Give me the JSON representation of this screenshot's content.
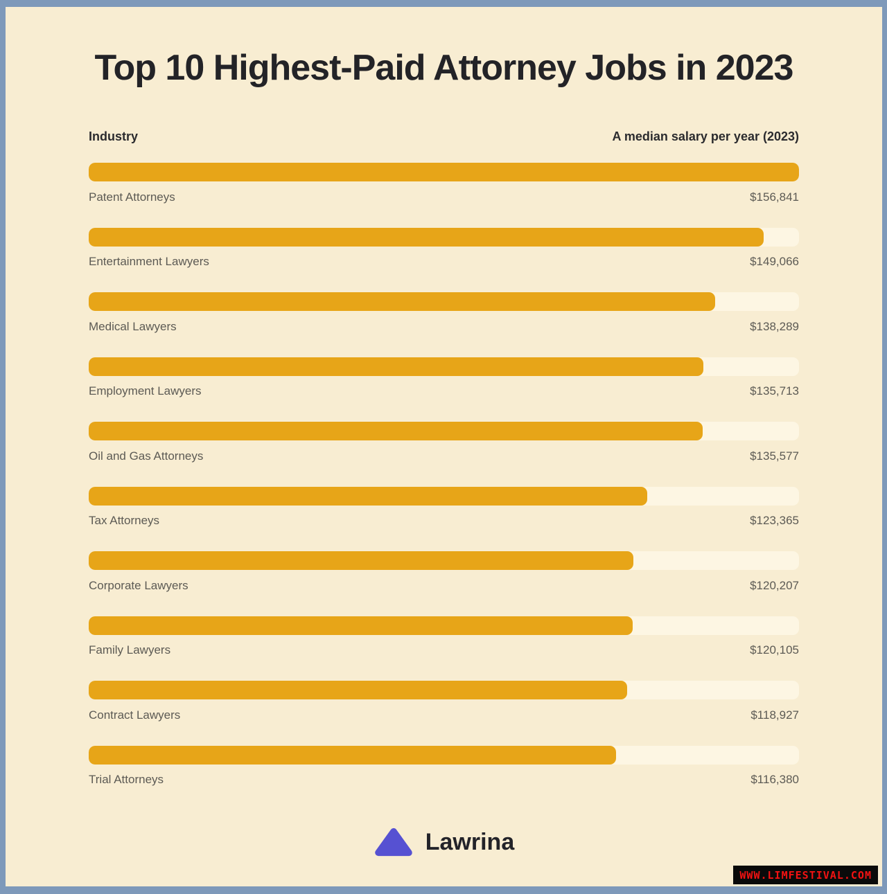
{
  "page": {
    "frame_color": "#7e99ba",
    "background_color": "#f8edd2"
  },
  "title": "Top 10 Highest-Paid Attorney Jobs in 2023",
  "table_headers": {
    "industry": "Industry",
    "salary": "A median salary per year (2023)"
  },
  "chart_data": {
    "type": "bar",
    "orientation": "horizontal",
    "title": "Top 10 Highest-Paid Attorney Jobs in 2023",
    "xlabel": "A median salary per year (2023)",
    "ylabel": "Industry",
    "max_value": 156841,
    "bar_color": "#e7a518",
    "track_color": "#fdf6e3",
    "grid": false,
    "legend": false,
    "categories": [
      "Patent Attorneys",
      "Entertainment Lawyers",
      "Medical Lawyers",
      "Employment Lawyers",
      "Oil and Gas Attorneys",
      "Tax Attorneys",
      "Corporate Lawyers",
      "Family Lawyers",
      "Contract Lawyers",
      "Trial Attorneys"
    ],
    "values": [
      156841,
      149066,
      138289,
      135713,
      135577,
      123365,
      120207,
      120105,
      118927,
      116380
    ],
    "value_labels": [
      "$156,841",
      "$149,066",
      "$138,289",
      "$135,713",
      "$135,577",
      "$123,365",
      "$120,207",
      "$120,105",
      "$118,927",
      "$116,380"
    ]
  },
  "footer": {
    "brand": "Lawrina",
    "logo_color": "#5651d2"
  },
  "watermark": {
    "text": "WWW.LIMFESTIVAL.COM",
    "text_color": "#f21212",
    "background": "#0a0a0a"
  }
}
